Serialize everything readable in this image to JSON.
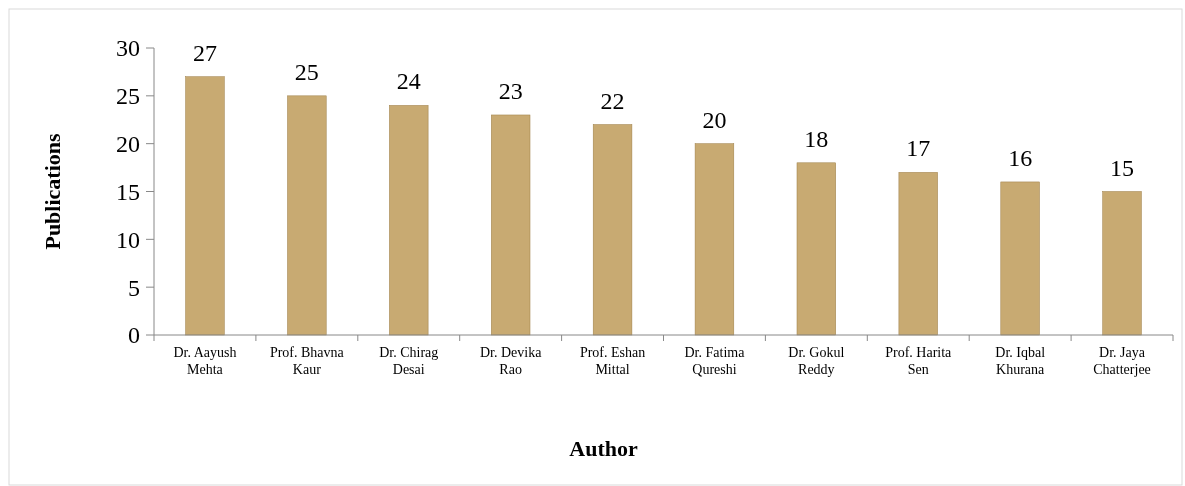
{
  "chart_data": {
    "type": "bar",
    "xlabel": "Author",
    "ylabel": "Publications",
    "categories": [
      "Dr. Aayush Mehta",
      "Prof. Bhavna Kaur",
      "Dr. Chirag Desai",
      "Dr. Devika Rao",
      "Prof. Eshan Mittal",
      "Dr. Fatima Qureshi",
      "Dr. Gokul Reddy",
      "Prof. Harita Sen",
      "Dr. Iqbal Khurana",
      "Dr. Jaya Chatterjee"
    ],
    "values": [
      27,
      25,
      24,
      23,
      22,
      20,
      18,
      17,
      16,
      15
    ],
    "color": "#c8aa72",
    "ylim": [
      0,
      30
    ],
    "yticks": [
      0,
      5,
      10,
      15,
      20,
      25,
      30
    ],
    "grid": false,
    "data_labels": true
  }
}
